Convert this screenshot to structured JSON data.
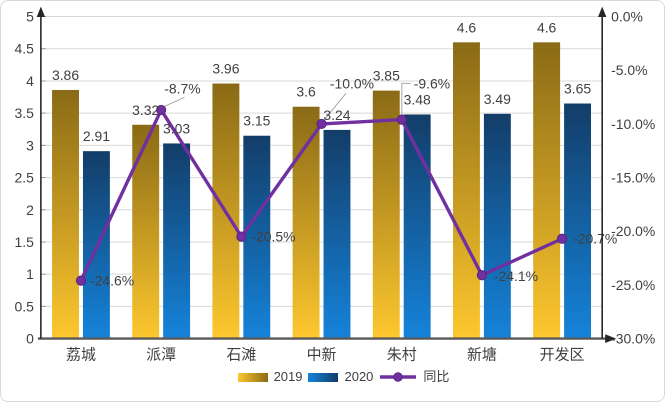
{
  "chart_data": {
    "type": "combo",
    "title": "",
    "xlabel": "",
    "ylabel": "",
    "categories": [
      "荔城",
      "派潭",
      "石滩",
      "中新",
      "朱村",
      "新塘",
      "开发区"
    ],
    "series": [
      {
        "name": "2019",
        "type": "bar",
        "axis": "left",
        "values": [
          3.86,
          3.32,
          3.96,
          3.6,
          3.85,
          4.6,
          4.6
        ],
        "labels": [
          "3.86",
          "3.32",
          "3.96",
          "3.6",
          "3.85",
          "4.6",
          "4.6"
        ],
        "fill_top": "#8a6a16",
        "fill_bottom": "#fdc72e"
      },
      {
        "name": "2020",
        "type": "bar",
        "axis": "left",
        "values": [
          2.91,
          3.03,
          3.15,
          3.24,
          3.48,
          3.49,
          3.65
        ],
        "labels": [
          "2.91",
          "3.03",
          "3.15",
          "3.24",
          "3.48",
          "3.49",
          "3.65"
        ],
        "fill_top": "#133d68",
        "fill_bottom": "#1583da"
      },
      {
        "name": "同比",
        "type": "line",
        "axis": "right",
        "values": [
          -24.6,
          -8.7,
          -20.5,
          -10.0,
          -9.6,
          -24.1,
          -20.7
        ],
        "labels": [
          "-24.6%",
          "-8.7%",
          "-20.5%",
          "-10.0%",
          "-9.6%",
          "-24.1%",
          "-20.7%"
        ],
        "color": "#7030a0",
        "marker": "circle"
      }
    ],
    "left_axis": {
      "min": 0,
      "max": 5,
      "step": 0.5,
      "ticks": [
        "0",
        "0.5",
        "1",
        "1.5",
        "2",
        "2.5",
        "3",
        "3.5",
        "4",
        "4.5",
        "5"
      ]
    },
    "right_axis": {
      "max": 0,
      "min": -30,
      "step": -5,
      "ticks": [
        "0.0%",
        "-5.0%",
        "-10.0%",
        "-15.0%",
        "-20.0%",
        "-25.0%",
        "-30.0%"
      ]
    },
    "grid": true,
    "legend_position": "bottom",
    "style": {
      "grid_color": "#d9d9d9",
      "tick_color": "#9b9b9b",
      "axis_color": "#262626",
      "x_axis_color": "#595959",
      "label_color": "#404040",
      "leader_color": "#a6a6a6",
      "marker_stroke": "#5a2480",
      "background": "#ffffff",
      "frame_border": "#d9d9d9"
    }
  }
}
